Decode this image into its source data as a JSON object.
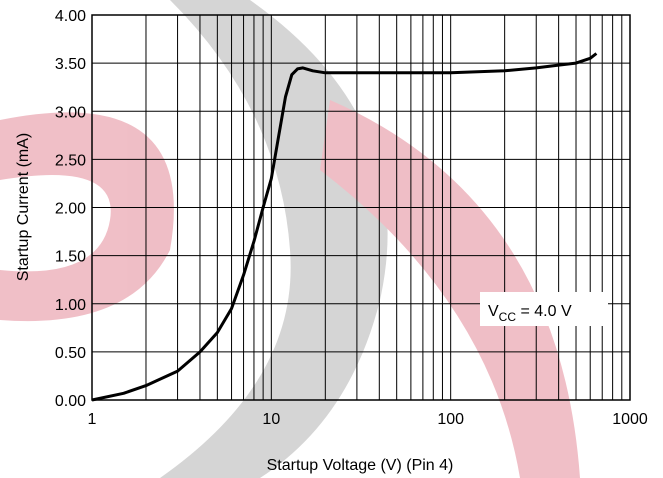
{
  "chart_data": {
    "type": "line",
    "x_label": "Startup Voltage (V) (Pin 4)",
    "y_label": "Startup Current (mA)",
    "annotation": [
      "V",
      "CC",
      " = 4.0 V"
    ],
    "x": [
      1,
      1.5,
      2,
      3,
      4,
      5,
      6,
      7,
      8,
      9,
      10,
      11,
      12,
      13,
      14,
      15,
      17,
      20,
      30,
      50,
      100,
      200,
      300,
      400,
      500,
      600,
      650
    ],
    "values": [
      0,
      0.07,
      0.15,
      0.3,
      0.5,
      0.7,
      0.95,
      1.3,
      1.65,
      2.0,
      2.3,
      2.75,
      3.15,
      3.38,
      3.44,
      3.45,
      3.42,
      3.4,
      3.4,
      3.4,
      3.4,
      3.42,
      3.45,
      3.48,
      3.5,
      3.55,
      3.6
    ],
    "color": "#000000",
    "xlog": true,
    "xlim": [
      1,
      1000
    ],
    "xticks": [
      1,
      10,
      100,
      1000
    ],
    "ylim": [
      0,
      4
    ],
    "yticks": [
      {
        "value": 0,
        "label": "0.00"
      },
      {
        "value": 0.5,
        "label": "0.50"
      },
      {
        "value": 1,
        "label": "1.00"
      },
      {
        "value": 1.5,
        "label": "1.50"
      },
      {
        "value": 2,
        "label": "2.00"
      },
      {
        "value": 2.5,
        "label": "2.50"
      },
      {
        "value": 3,
        "label": "3.00"
      },
      {
        "value": 3.5,
        "label": "3.50"
      },
      {
        "value": 4,
        "label": "4.00"
      }
    ],
    "grid": true,
    "minor_grid": true
  }
}
